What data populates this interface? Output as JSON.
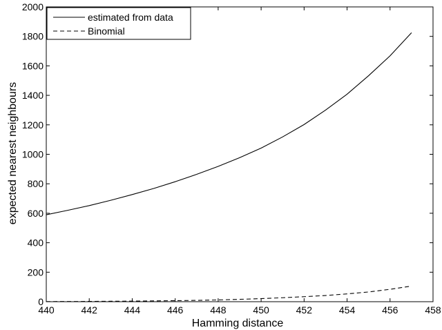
{
  "chart_data": {
    "type": "line",
    "title": "",
    "xlabel": "Hamming distance",
    "ylabel": "expected nearest neighbours",
    "xlim": [
      440,
      458
    ],
    "ylim": [
      0,
      2000
    ],
    "xticks": [
      440,
      442,
      444,
      446,
      448,
      450,
      452,
      454,
      456,
      458
    ],
    "yticks": [
      0,
      200,
      400,
      600,
      800,
      1000,
      1200,
      1400,
      1600,
      1800,
      2000
    ],
    "grid": false,
    "legend_position": "top-left",
    "series": [
      {
        "name": "estimated from data",
        "line_style": "solid",
        "color": "#000000",
        "x": [
          440,
          441,
          442,
          443,
          444,
          445,
          446,
          447,
          448,
          449,
          450,
          451,
          452,
          453,
          454,
          455,
          456,
          457
        ],
        "y": [
          590,
          620,
          652,
          688,
          727,
          768,
          814,
          864,
          918,
          977,
          1042,
          1118,
          1202,
          1300,
          1408,
          1533,
          1668,
          1825
        ]
      },
      {
        "name": "Binomial",
        "line_style": "dashed",
        "color": "#000000",
        "x": [
          440,
          441,
          442,
          443,
          444,
          445,
          446,
          447,
          448,
          449,
          450,
          451,
          452,
          453,
          454,
          455,
          456,
          457
        ],
        "y": [
          1,
          1.5,
          2,
          3,
          4,
          5.5,
          7,
          9,
          12,
          16,
          21,
          27,
          34,
          42,
          53,
          66,
          84,
          106
        ]
      }
    ]
  }
}
